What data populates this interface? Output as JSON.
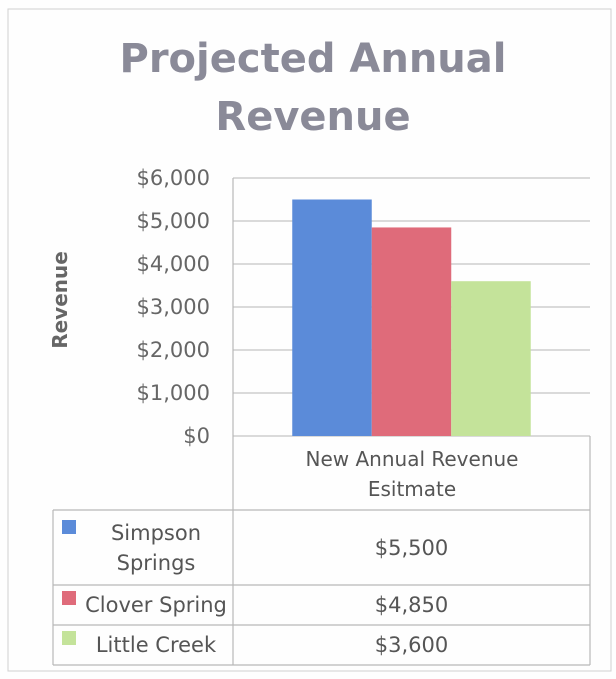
{
  "chart_data": {
    "type": "bar",
    "title": "Projected Annual Revenue",
    "y_label": "Revenue",
    "categories": [
      "New Annual Revenue Esitmate"
    ],
    "series": [
      {
        "name": "Simpson Springs",
        "color": "#5b8bd9",
        "values": [
          5500
        ],
        "value_labels": [
          "$5,500"
        ]
      },
      {
        "name": "Clover Spring",
        "color": "#df6b7a",
        "values": [
          4850
        ],
        "value_labels": [
          "$4,850"
        ]
      },
      {
        "name": "Little Creek",
        "color": "#c4e39a",
        "values": [
          3600
        ],
        "value_labels": [
          "$3,600"
        ]
      }
    ],
    "ylim": [
      0,
      6000
    ],
    "yticks": [
      {
        "value": 0,
        "label": "$0"
      },
      {
        "value": 1000,
        "label": "$1,000"
      },
      {
        "value": 2000,
        "label": "$2,000"
      },
      {
        "value": 3000,
        "label": "$3,000"
      },
      {
        "value": 4000,
        "label": "$4,000"
      },
      {
        "value": 5000,
        "label": "$5,000"
      },
      {
        "value": 6000,
        "label": "$6,000"
      }
    ],
    "grid": true
  }
}
